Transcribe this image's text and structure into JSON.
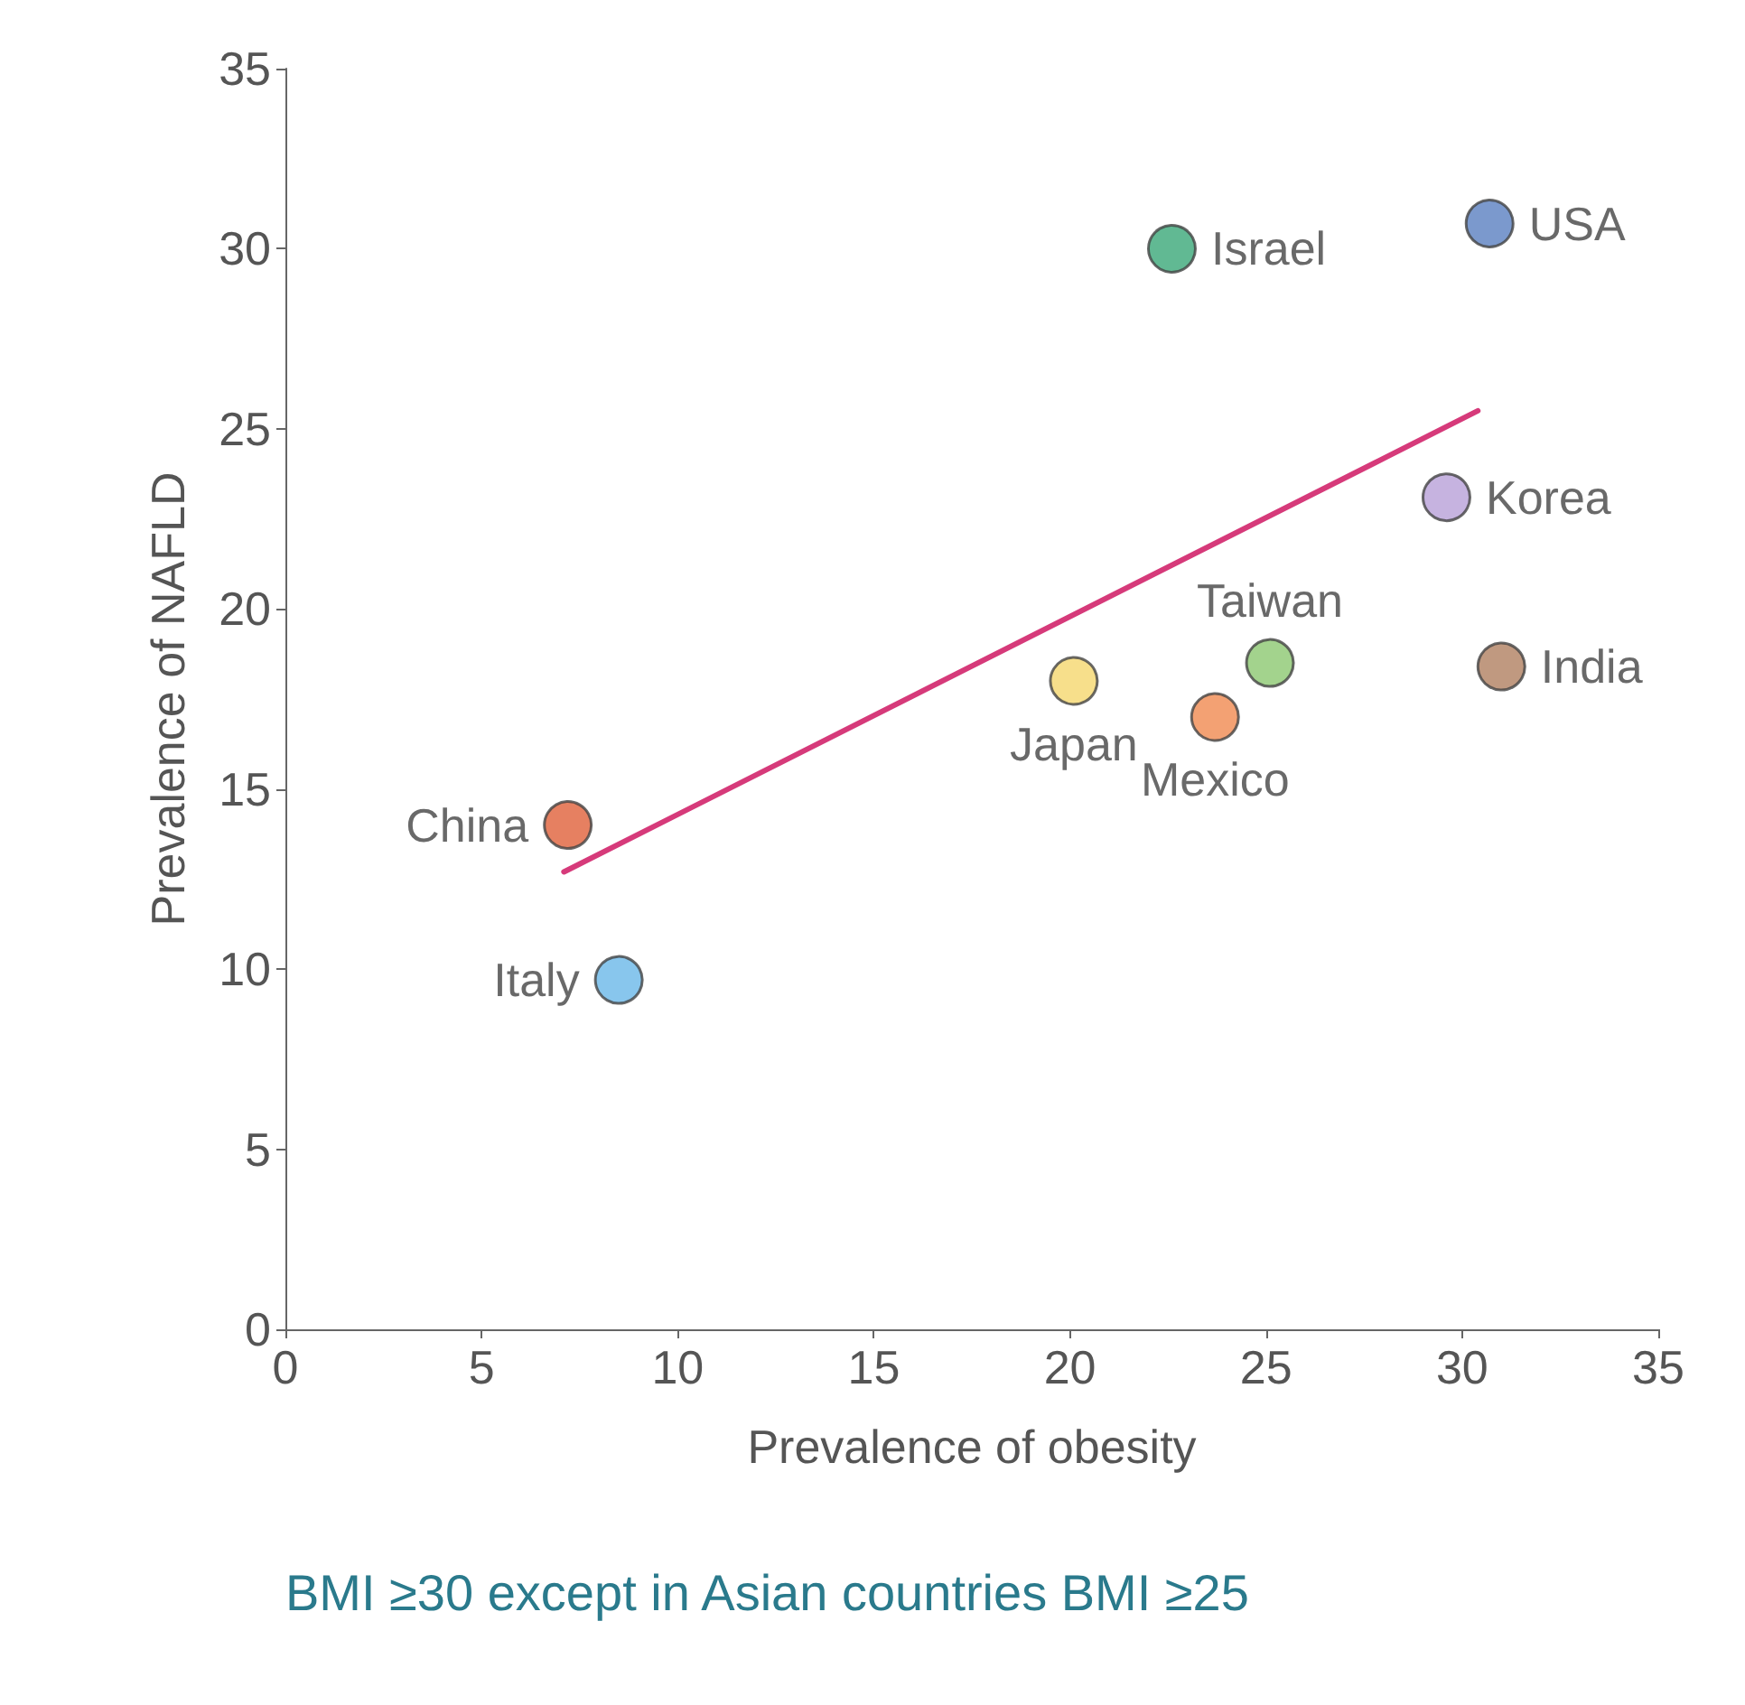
{
  "chart_data": {
    "type": "scatter",
    "xlabel": "Prevalence of obesity",
    "ylabel": "Prevalence of NAFLD",
    "annotations": [
      "BMI ≥30 except in Asian countries BMI ≥25"
    ],
    "xlim": [
      0,
      35
    ],
    "ylim": [
      0,
      35
    ],
    "xticks": [
      0,
      5,
      10,
      15,
      20,
      25,
      30,
      35
    ],
    "yticks": [
      0,
      5,
      10,
      15,
      20,
      25,
      30,
      35
    ],
    "grid": false,
    "legend": false,
    "marker": "circle",
    "series": [
      {
        "name": "China",
        "color": "#e0603a",
        "x": [
          7.2
        ],
        "values": [
          14.0
        ]
      },
      {
        "name": "Italy",
        "color": "#6ab8e8",
        "x": [
          8.5
        ],
        "values": [
          9.7
        ]
      },
      {
        "name": "Japan",
        "color": "#f5d76e",
        "x": [
          20.1
        ],
        "values": [
          18.0
        ]
      },
      {
        "name": "Mexico",
        "color": "#f08a50",
        "x": [
          23.7
        ],
        "values": [
          17.0
        ]
      },
      {
        "name": "Taiwan",
        "color": "#8cc870",
        "x": [
          25.1
        ],
        "values": [
          18.5
        ]
      },
      {
        "name": "Israel",
        "color": "#3aa878",
        "x": [
          22.6
        ],
        "values": [
          30.0
        ]
      },
      {
        "name": "USA",
        "color": "#5a80c0",
        "x": [
          30.7
        ],
        "values": [
          30.7
        ]
      },
      {
        "name": "Korea",
        "color": "#b8a0d8",
        "x": [
          29.6
        ],
        "values": [
          23.1
        ]
      },
      {
        "name": "India",
        "color": "#b08060",
        "x": [
          31.0
        ],
        "values": [
          18.4
        ]
      },
      {
        "type": "line",
        "color": "#d63a7a",
        "line_style": "solid",
        "marker": "none",
        "x": [
          7.1,
          30.4
        ],
        "values": [
          12.7,
          25.5
        ]
      }
    ]
  }
}
